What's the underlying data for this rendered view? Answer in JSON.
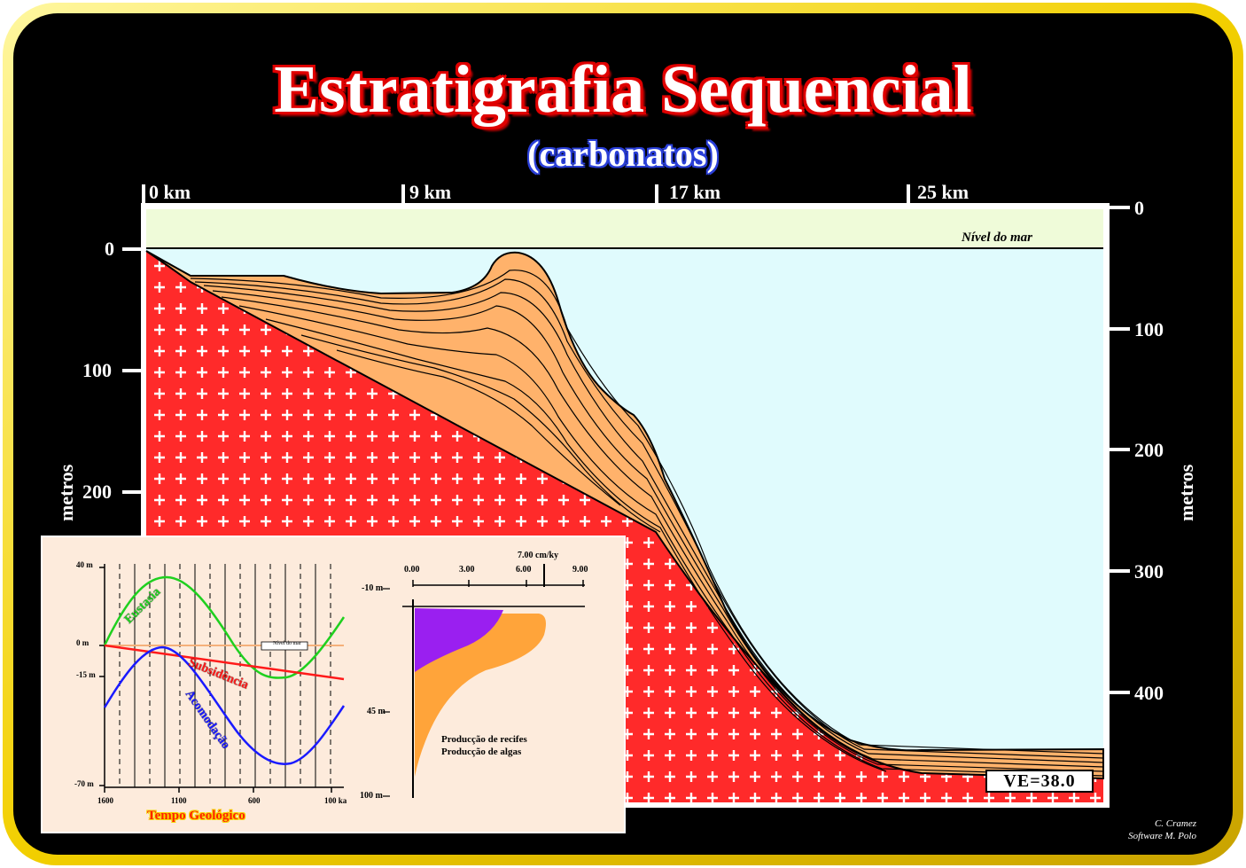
{
  "title": "Estratigrafia Sequencial",
  "subtitle": "(carbonatos)",
  "top_axis": {
    "ticks": [
      "0 km",
      "9 km",
      "17 km",
      "25 km"
    ]
  },
  "left_axis": {
    "label": "metros",
    "ticks": [
      "0",
      "100",
      "200"
    ]
  },
  "right_axis": {
    "label": "metros",
    "ticks": [
      "0",
      "100",
      "200",
      "300",
      "400"
    ]
  },
  "sea_level_label": "Nível do mar",
  "vertical_exaggeration": "VE=38.0",
  "credits": {
    "line1": "C. Cramez",
    "line2": "Software M. Polo"
  },
  "inset_left": {
    "y_ticks": [
      "40 m",
      "0 m",
      "-15 m",
      "-70 m"
    ],
    "x_ticks": [
      "1600",
      "1100",
      "600",
      "100 ka"
    ],
    "curves": [
      "Eustasia",
      "Subsidência",
      "Acomodação"
    ],
    "box_label": "Nível do mar",
    "x_title": "Tempo  Geológico"
  },
  "inset_right": {
    "x_ticks": [
      "0.00",
      "3.00",
      "6.00",
      "9.00"
    ],
    "marker_label": "7.00 cm/ky",
    "y_ticks": [
      "-10 m",
      "45 m",
      "100 m"
    ],
    "legend": [
      "Producção de recifes",
      "Producção de algas"
    ]
  },
  "colors": {
    "frame": "#f5d800",
    "basement": "#ff2a2a",
    "sediment": "#ffb26b",
    "water": "#e0fbfd",
    "reef": "#ffa43a",
    "algae": "#9a1ff0"
  }
}
